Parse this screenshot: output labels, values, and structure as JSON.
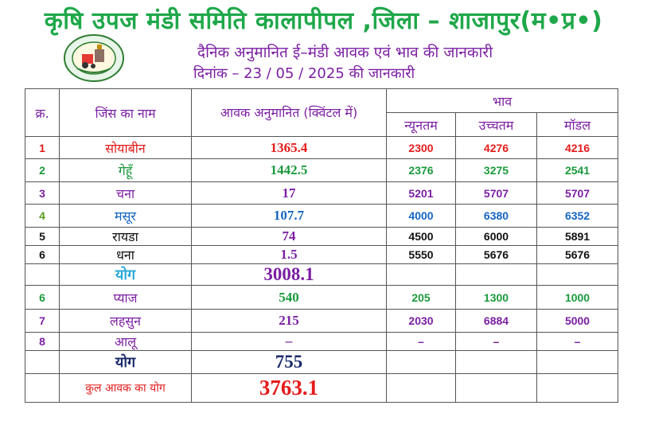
{
  "header": {
    "title": "कृषि उपज मंडी समिति कालापीपल ,जिला – शाजापुर(म•प्र•)",
    "subtitle": "दैनिक अनुमानित ई–मंडी आवक एवं भाव की जानकारी",
    "date_line": "दिनांक – 23 / 05 / 2025 की जानकारी"
  },
  "colors": {
    "title": "#1fa84a",
    "subtitle": "#7b1fa2",
    "red": "#e41c1c",
    "green": "#1a9a3c",
    "purple": "#7b1fa2",
    "blue": "#1565c0",
    "cyan": "#29a9d9",
    "navy": "#1b2a6b"
  },
  "table": {
    "headers": {
      "sno": "क्र.",
      "name": "जिंस का नाम",
      "arrival": "आवक अनुमानित (क्विंटल में)",
      "price": "भाव",
      "min": "न्यूनतम",
      "max": "उच्चतम",
      "modal": "मॉडल"
    },
    "rows": [
      {
        "sno": "1",
        "name": "सोयाबीन",
        "arrival": "1365.4",
        "min": "2300",
        "max": "4276",
        "modal": "4216"
      },
      {
        "sno": "2",
        "name": "गेहूँ",
        "arrival": "1442.5",
        "min": "2376",
        "max": "3275",
        "modal": "2541"
      },
      {
        "sno": "3",
        "name": "चना",
        "arrival": "17",
        "min": "5201",
        "max": "5707",
        "modal": "5707"
      },
      {
        "sno": "4",
        "name": "मसूर",
        "arrival": "107.7",
        "min": "4000",
        "max": "6380",
        "modal": "6352"
      },
      {
        "sno": "5",
        "name": "रायडा",
        "arrival": "74",
        "min": "4500",
        "max": "6000",
        "modal": "5891"
      },
      {
        "sno": "6",
        "name": "धना",
        "arrival": "1.5",
        "min": "5550",
        "max": "5676",
        "modal": "5676"
      }
    ],
    "total1": {
      "label": "योग",
      "value": "3008.1"
    },
    "rows2": [
      {
        "sno": "6",
        "name": "प्याज",
        "arrival": "540",
        "min": "205",
        "max": "1300",
        "modal": "1000"
      },
      {
        "sno": "7",
        "name": "लहसुन",
        "arrival": "215",
        "min": "2030",
        "max": "6884",
        "modal": "5000"
      },
      {
        "sno": "8",
        "name": "आलू",
        "arrival": "–",
        "min": "–",
        "max": "–",
        "modal": "–"
      }
    ],
    "total2": {
      "label": "योग",
      "value": "755"
    },
    "grand_total": {
      "label": "कुल आवक का योग",
      "value": "3763.1"
    }
  }
}
